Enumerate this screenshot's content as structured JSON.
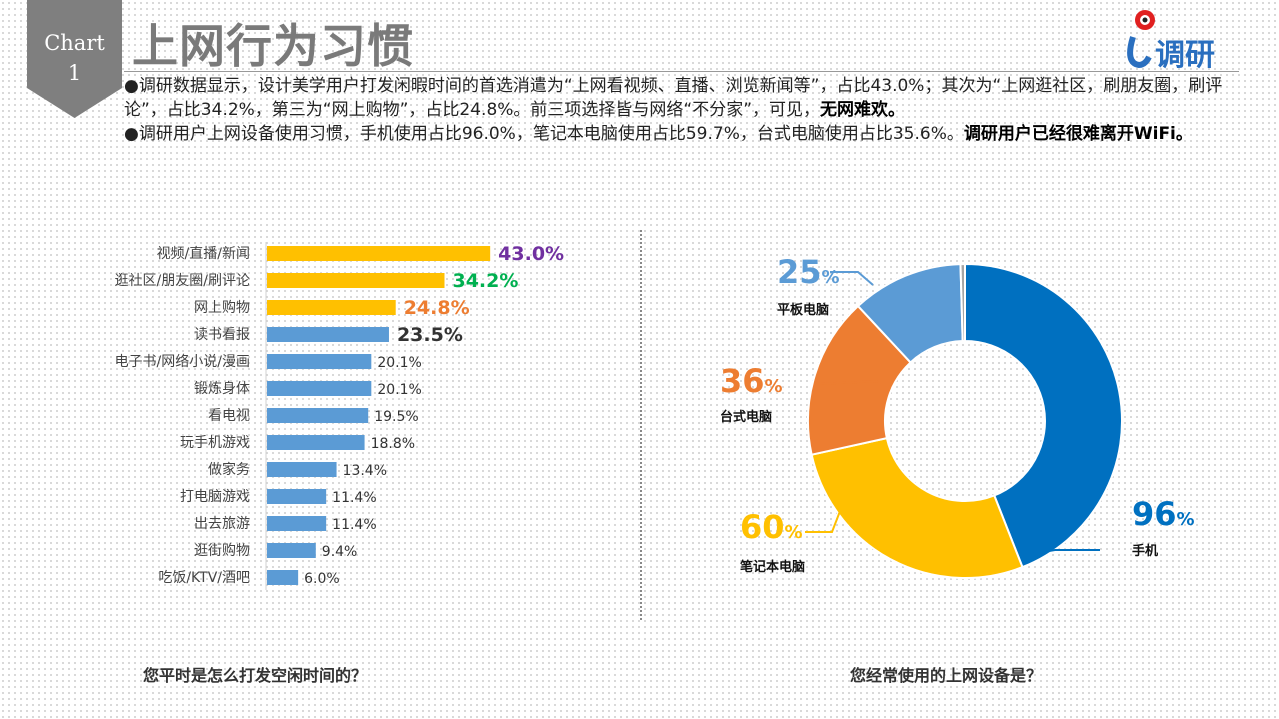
{
  "badge": {
    "line1": "Chart",
    "line2": "1"
  },
  "title": "上网行为习惯",
  "logo": {
    "text": "i调研"
  },
  "description": {
    "p1": "●调研数据显示，设计美学用户打发闲暇时间的首选消遣为“上网看视频、直播、浏览新闻等”，占比43.0%；其次为“上网逛社区，刷朋友圈，刷评论”，占比34.2%，第三为“网上购物”，占比24.8%。前三项选择皆与网络“不分家”，可见，",
    "p1_bold": "无网难欢。",
    "p2": "●调研用户上网设备使用习惯，手机使用占比96.0%，笔记本电脑使用占比59.7%，台式电脑使用占比35.6%。",
    "p2_bold": "调研用户已经很难离开WiFi。"
  },
  "chart_data": [
    {
      "type": "bar",
      "orientation": "horizontal",
      "xlabel": "您平时是怎么打发空闲时间的？",
      "categories": [
        "视频/直播/新闻",
        "逛社区/朋友圈/刷评论",
        "网上购物",
        "读书看报",
        "电子书/网络小说/漫画",
        "锻炼身体",
        "看电视",
        "玩手机游戏",
        "做家务",
        "打电脑游戏",
        "出去旅游",
        "逛街购物",
        "吃饭/KTV/酒吧"
      ],
      "values": [
        43.0,
        34.2,
        24.8,
        23.5,
        20.1,
        20.1,
        19.5,
        18.8,
        13.4,
        11.4,
        11.4,
        9.4,
        6.0
      ],
      "labels": [
        "43.0%",
        "34.2%",
        "24.8%",
        "23.5%",
        "20.1%",
        "20.1%",
        "19.5%",
        "18.8%",
        "13.4%",
        "11.4%",
        "11.4%",
        "9.4%",
        "6.0%"
      ],
      "bar_colors": [
        "#FFC000",
        "#FFC000",
        "#FFC000",
        "#5B9BD5",
        "#5B9BD5",
        "#5B9BD5",
        "#5B9BD5",
        "#5B9BD5",
        "#5B9BD5",
        "#5B9BD5",
        "#5B9BD5",
        "#5B9BD5",
        "#5B9BD5"
      ],
      "label_colors": [
        "#7030A0",
        "#00B050",
        "#ED7D31",
        "#333333",
        "#333333",
        "#333333",
        "#333333",
        "#333333",
        "#333333",
        "#333333",
        "#333333",
        "#333333",
        "#333333"
      ]
    },
    {
      "type": "pie",
      "donut": true,
      "xlabel": "您经常使用的上网设备是？",
      "slices": [
        {
          "name": "手机",
          "value": 96,
          "label": "96",
          "color": "#0070C0"
        },
        {
          "name": "笔记本电脑",
          "value": 60,
          "label": "60",
          "color": "#FFC000"
        },
        {
          "name": "台式电脑",
          "value": 36,
          "label": "36",
          "color": "#ED7D31"
        },
        {
          "name": "平板电脑",
          "value": 25,
          "label": "25",
          "color": "#5B9BD5"
        },
        {
          "name": "",
          "value": 1,
          "label": "",
          "color": "#A5A5A5"
        }
      ],
      "unit": "%"
    }
  ]
}
